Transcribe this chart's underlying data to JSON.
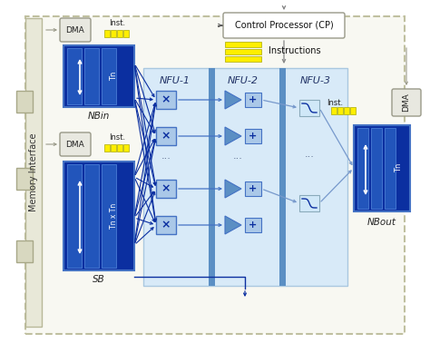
{
  "bg_color": "#ffffff",
  "outer_fill": "#f5f5ee",
  "outer_edge": "#c8c8a8",
  "blue_dark": "#0b2fa0",
  "blue_mid": "#4472c4",
  "blue_light": "#ccddf0",
  "blue_col": "#5b8fc4",
  "yellow": "#ffee00",
  "white": "#ffffff",
  "gray_dma": "#e8e8e0",
  "gray_tab": "#d8d8c8",
  "text_dark": "#111111",
  "memory_label": "Memory Interface",
  "cp_label": "Control Processor (CP)",
  "inst_label": "Instructions",
  "nfu1": "NFU-1",
  "nfu2": "NFU-2",
  "nfu3": "NFU-3",
  "nbin_label": "NBin",
  "sb_label": "SB",
  "nbout_label": "NBout"
}
